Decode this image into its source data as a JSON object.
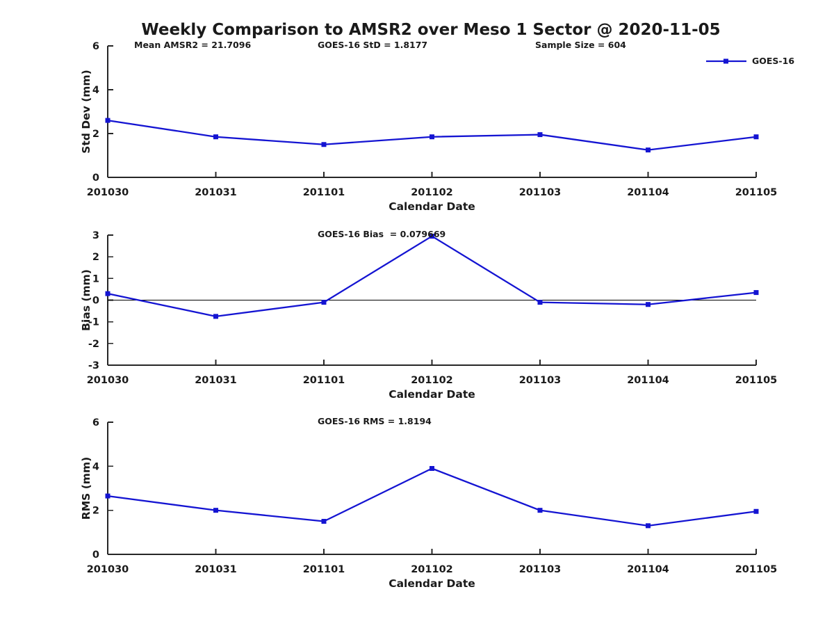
{
  "figure": {
    "title": "Weekly Comparison to AMSR2 over Meso 1 Sector @ 2020-11-05"
  },
  "legend": {
    "label": "GOES-16",
    "position": "top-right"
  },
  "colors": {
    "series": "#1414D2",
    "axis": "#262626",
    "text": "#1a1a1a",
    "zero_line": "#000000",
    "background": "#ffffff"
  },
  "chart_data": [
    {
      "type": "line",
      "name": "std-dev",
      "ylabel": "Std Dev (mm)",
      "xlabel": "Calendar Date",
      "ylim": [
        0,
        6
      ],
      "yticks": [
        0,
        2,
        4,
        6
      ],
      "grid": false,
      "zero_line": false,
      "categories": [
        "201030",
        "201031",
        "201101",
        "201102",
        "201103",
        "201104",
        "201105"
      ],
      "series": [
        {
          "name": "GOES-16",
          "values": [
            2.6,
            1.85,
            1.5,
            1.85,
            1.95,
            1.25,
            1.85
          ]
        }
      ],
      "annotations": [
        "Mean AMSR2 = 21.7096",
        "GOES-16 StD = 1.8177",
        "Sample Size = 604"
      ]
    },
    {
      "type": "line",
      "name": "bias",
      "ylabel": "Bias (mm)",
      "xlabel": "Calendar Date",
      "ylim": [
        -3,
        3
      ],
      "yticks": [
        -3,
        -2,
        -1,
        0,
        1,
        2,
        3
      ],
      "grid": false,
      "zero_line": true,
      "categories": [
        "201030",
        "201031",
        "201101",
        "201102",
        "201103",
        "201104",
        "201105"
      ],
      "series": [
        {
          "name": "GOES-16",
          "values": [
            0.3,
            -0.75,
            -0.1,
            2.95,
            -0.1,
            -0.2,
            0.35
          ]
        }
      ],
      "annotations": [
        "GOES-16 Bias  = 0.079669"
      ]
    },
    {
      "type": "line",
      "name": "rms",
      "ylabel": "RMS (mm)",
      "xlabel": "Calendar Date",
      "ylim": [
        0,
        6
      ],
      "yticks": [
        0,
        2,
        4,
        6
      ],
      "grid": false,
      "zero_line": false,
      "categories": [
        "201030",
        "201031",
        "201101",
        "201102",
        "201103",
        "201104",
        "201105"
      ],
      "series": [
        {
          "name": "GOES-16",
          "values": [
            2.65,
            2.0,
            1.5,
            3.9,
            2.0,
            1.3,
            1.95
          ]
        }
      ],
      "annotations": [
        "GOES-16 RMS = 1.8194"
      ]
    }
  ]
}
